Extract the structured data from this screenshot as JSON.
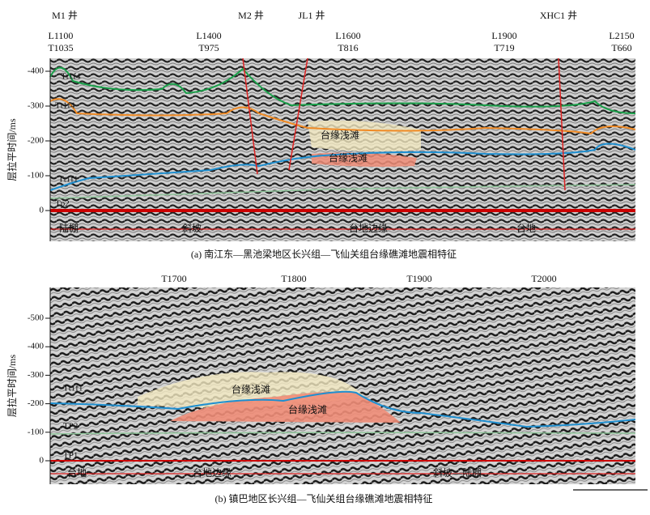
{
  "panels": [
    {
      "ylabel": "层拉平时间/ms",
      "yticks": [
        -400,
        -300,
        -200,
        -100,
        0
      ],
      "wells": [
        "M1 井",
        "M2 井",
        "JL1 井",
        "XHC1 井"
      ],
      "traces": [
        [
          "L1100",
          "T1035"
        ],
        [
          "L1400",
          "T975"
        ],
        [
          "L1600",
          "T816"
        ],
        [
          "L1900",
          "T719"
        ],
        [
          "L2150",
          "T660"
        ]
      ],
      "horizons": [
        "Tt1f4",
        "Tt1f4",
        "Tt1f1",
        "Tp2"
      ],
      "facies": [
        "台缘浅滩",
        "台缘浅滩"
      ],
      "zones": [
        "陆棚",
        "斜坡",
        "台地边缘",
        "台地"
      ],
      "caption": "(a) 南江东—黑池梁地区长兴组—飞仙关组台缘礁滩地震相特征"
    },
    {
      "ylabel": "层拉平时间/ms",
      "yticks": [
        -500,
        -400,
        -300,
        -200,
        -100,
        0
      ],
      "traces": [
        "T1700",
        "T1800",
        "T1900",
        "T2000"
      ],
      "horizons": [
        "Tt1f1",
        "TP2",
        "TP1"
      ],
      "facies": [
        "台缘浅滩",
        "台缘浅滩"
      ],
      "zones": [
        "台地",
        "台地边缘",
        "斜坡—陆棚"
      ],
      "caption": "(b) 镇巴地区长兴组—飞仙关组台缘礁滩地震相特征"
    }
  ]
}
